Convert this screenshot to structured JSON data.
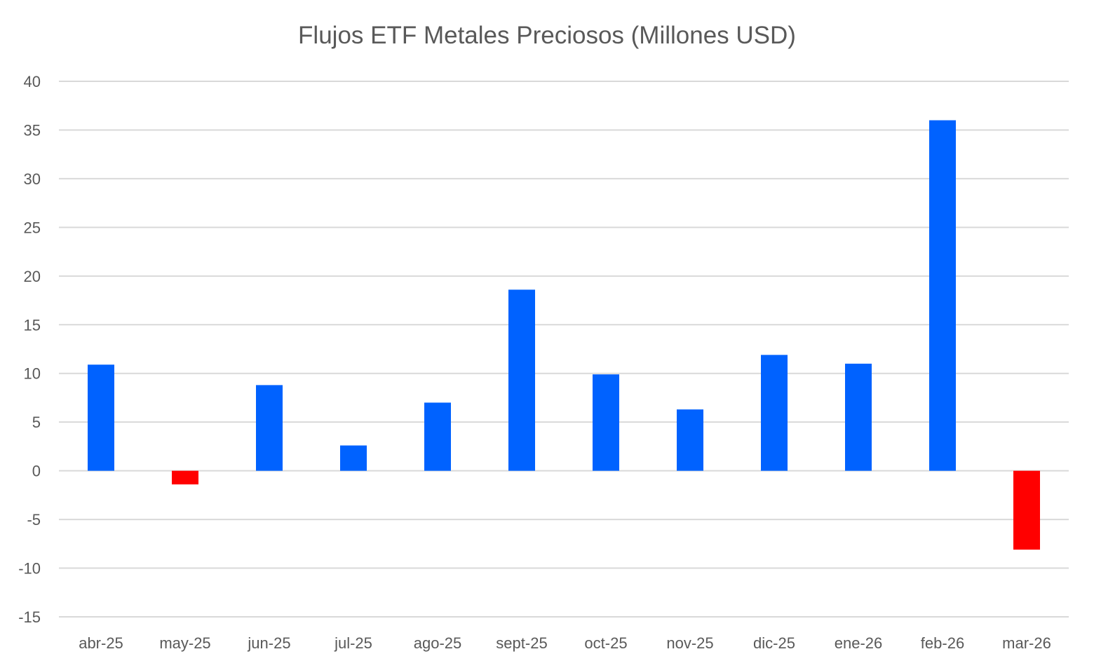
{
  "chart_data": {
    "type": "bar",
    "title": "Flujos ETF Metales Preciosos (Millones USD)",
    "xlabel": "",
    "ylabel": "",
    "categories": [
      "abr-25",
      "may-25",
      "jun-25",
      "jul-25",
      "ago-25",
      "sept-25",
      "oct-25",
      "nov-25",
      "dic-25",
      "ene-26",
      "feb-26",
      "mar-26"
    ],
    "values": [
      10.9,
      -1.4,
      8.8,
      2.6,
      7.0,
      18.6,
      9.9,
      6.3,
      11.9,
      11.0,
      36.0,
      -8.1
    ],
    "ylim": [
      -15,
      40
    ],
    "yticks": [
      40,
      35,
      30,
      25,
      20,
      15,
      10,
      5,
      0,
      -5,
      -10,
      -15
    ],
    "grid": true,
    "legend": "none",
    "colors": {
      "positive": "#0062FF",
      "negative": "#FF0000",
      "grid": "#D9D9D9",
      "text": "#595959"
    }
  }
}
